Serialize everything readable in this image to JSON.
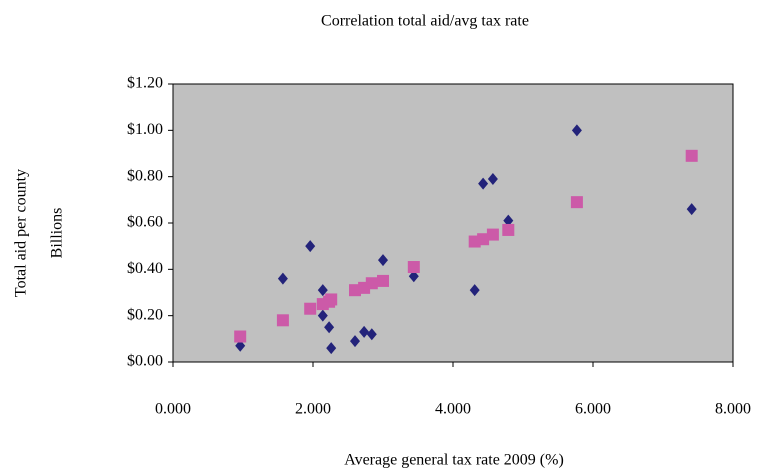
{
  "chart_data": {
    "type": "scatter",
    "title": "Correlation total aid/avg tax rate",
    "x_label": "Average general tax rate 2009 (%)",
    "y_label": "Total aid per county",
    "y_unit": "Billions",
    "plot_background": "#c0c0c0",
    "xlim": [
      0,
      8
    ],
    "ylim": [
      0,
      1.2
    ],
    "xticks": [
      {
        "value": 0,
        "label": "0.000"
      },
      {
        "value": 2,
        "label": "2.000"
      },
      {
        "value": 4,
        "label": "4.000"
      },
      {
        "value": 6,
        "label": "6.000"
      },
      {
        "value": 8,
        "label": "8.000"
      }
    ],
    "yticks": [
      {
        "value": 0,
        "label": "$0.00"
      },
      {
        "value": 0.2,
        "label": "$0.20"
      },
      {
        "value": 0.4,
        "label": "$0.40"
      },
      {
        "value": 0.6,
        "label": "$0.60"
      },
      {
        "value": 0.8,
        "label": "$0.80"
      },
      {
        "value": 1,
        "label": "$1.00"
      },
      {
        "value": 1.2,
        "label": "$1.20"
      }
    ],
    "series": [
      {
        "color": "#23237a",
        "marker": "diamond",
        "x": [
          0.96,
          1.57,
          1.96,
          2.14,
          2.14,
          2.23,
          2.26,
          2.6,
          2.73,
          2.84,
          3.0,
          3.44,
          4.31,
          4.43,
          4.57,
          4.79,
          5.77,
          7.41
        ],
        "values": [
          0.07,
          0.36,
          0.5,
          0.31,
          0.2,
          0.15,
          0.06,
          0.09,
          0.13,
          0.12,
          0.44,
          0.37,
          0.31,
          0.77,
          0.79,
          0.61,
          1.0,
          0.66
        ]
      },
      {
        "color": "#cc5aa8",
        "marker": "square",
        "x": [
          0.96,
          1.57,
          1.96,
          2.14,
          2.23,
          2.26,
          2.6,
          2.73,
          2.84,
          3.0,
          3.44,
          4.31,
          4.43,
          4.57,
          4.79,
          5.77,
          7.41
        ],
        "values": [
          0.11,
          0.18,
          0.23,
          0.25,
          0.26,
          0.27,
          0.31,
          0.32,
          0.34,
          0.35,
          0.41,
          0.52,
          0.53,
          0.55,
          0.57,
          0.69,
          0.89
        ]
      }
    ]
  }
}
